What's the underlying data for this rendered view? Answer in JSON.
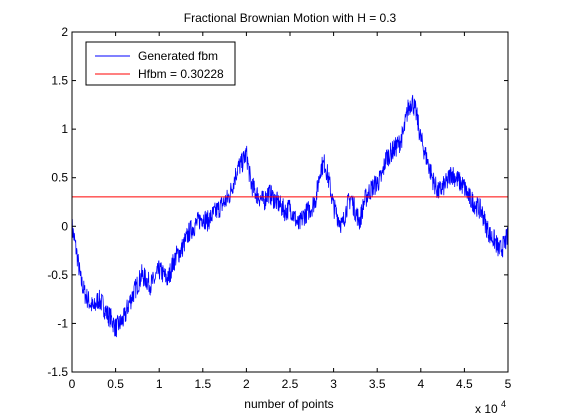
{
  "chart_data": {
    "type": "line",
    "title": "Fractional Brownian Motion with H = 0.3",
    "xlabel": "number of points",
    "ylabel": "",
    "x_multiplier_label": "x 10",
    "x_multiplier_exponent": "4",
    "xlim": [
      0,
      5
    ],
    "ylim": [
      -1.5,
      2
    ],
    "x_ticks": [
      0,
      0.5,
      1,
      1.5,
      2,
      2.5,
      3,
      3.5,
      4,
      4.5,
      5
    ],
    "x_tick_labels": [
      "0",
      "0.5",
      "1",
      "1.5",
      "2",
      "2.5",
      "3",
      "3.5",
      "4",
      "4.5",
      "5"
    ],
    "y_ticks": [
      -1.5,
      -1,
      -0.5,
      0,
      0.5,
      1,
      1.5,
      2
    ],
    "y_tick_labels": [
      "-1.5",
      "-1",
      "-0.5",
      "0",
      "0.5",
      "1",
      "1.5",
      "2"
    ],
    "grid": false,
    "legend_position": "top-left",
    "series": [
      {
        "name": "Generated fbm",
        "color": "#0000ff",
        "noise_amplitude": 0.11,
        "x": [
          0,
          0.05,
          0.1,
          0.15,
          0.2,
          0.25,
          0.3,
          0.35,
          0.4,
          0.45,
          0.5,
          0.55,
          0.6,
          0.65,
          0.7,
          0.75,
          0.8,
          0.85,
          0.9,
          0.95,
          1.0,
          1.05,
          1.1,
          1.15,
          1.2,
          1.25,
          1.3,
          1.35,
          1.4,
          1.45,
          1.5,
          1.55,
          1.6,
          1.65,
          1.7,
          1.75,
          1.8,
          1.85,
          1.9,
          1.95,
          2.0,
          2.05,
          2.1,
          2.15,
          2.2,
          2.25,
          2.3,
          2.35,
          2.4,
          2.45,
          2.5,
          2.55,
          2.6,
          2.65,
          2.7,
          2.75,
          2.8,
          2.85,
          2.9,
          2.95,
          3.0,
          3.05,
          3.1,
          3.15,
          3.2,
          3.25,
          3.3,
          3.35,
          3.4,
          3.45,
          3.5,
          3.55,
          3.6,
          3.65,
          3.7,
          3.75,
          3.8,
          3.85,
          3.9,
          3.95,
          4.0,
          4.05,
          4.1,
          4.15,
          4.2,
          4.25,
          4.3,
          4.35,
          4.4,
          4.45,
          4.5,
          4.55,
          4.6,
          4.65,
          4.7,
          4.75,
          4.8,
          4.85,
          4.9,
          4.95,
          5.0
        ],
        "y": [
          0.0,
          -0.25,
          -0.55,
          -0.7,
          -0.78,
          -0.85,
          -0.75,
          -0.8,
          -0.9,
          -0.95,
          -1.05,
          -1.0,
          -0.95,
          -0.8,
          -0.7,
          -0.6,
          -0.5,
          -0.55,
          -0.6,
          -0.55,
          -0.45,
          -0.5,
          -0.55,
          -0.4,
          -0.3,
          -0.25,
          -0.15,
          -0.05,
          0.0,
          0.05,
          0.1,
          0.05,
          0.1,
          0.15,
          0.2,
          0.25,
          0.3,
          0.45,
          0.6,
          0.65,
          0.75,
          0.45,
          0.35,
          0.3,
          0.25,
          0.35,
          0.3,
          0.25,
          0.2,
          0.15,
          0.2,
          0.1,
          0.0,
          0.1,
          0.15,
          0.2,
          0.3,
          0.6,
          0.65,
          0.45,
          0.2,
          0.1,
          0.0,
          0.2,
          0.3,
          0.15,
          0.05,
          0.25,
          0.35,
          0.4,
          0.45,
          0.5,
          0.7,
          0.75,
          0.8,
          0.85,
          0.95,
          1.2,
          1.3,
          1.15,
          0.9,
          0.75,
          0.6,
          0.45,
          0.35,
          0.4,
          0.45,
          0.55,
          0.5,
          0.45,
          0.4,
          0.3,
          0.25,
          0.2,
          0.15,
          0.0,
          -0.1,
          -0.15,
          -0.25,
          -0.2,
          -0.1
        ]
      },
      {
        "name": "Hfbm = 0.30228",
        "color": "#ff0000",
        "x": [
          0,
          5
        ],
        "y": [
          0.30228,
          0.30228
        ]
      }
    ]
  }
}
